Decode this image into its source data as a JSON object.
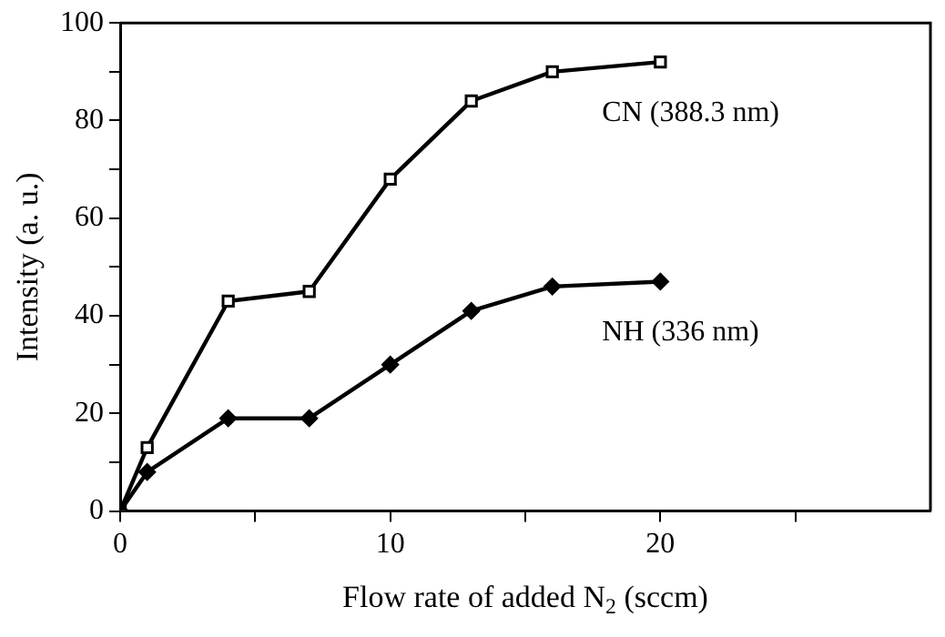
{
  "chart_data": {
    "type": "line",
    "xlabel": "Flow rate of added N$_{2}$ (sccm)",
    "ylabel": "Intensity (a. u.)",
    "x": [
      0,
      1,
      4,
      7,
      10,
      13,
      16,
      20
    ],
    "series": [
      {
        "name": "CN (388.3 nm)",
        "color": "#000000",
        "marker": "square",
        "values": [
          0,
          13,
          43,
          45,
          68,
          84,
          90,
          92
        ]
      },
      {
        "name": "NH (336 nm)",
        "color": "#000000",
        "marker": "diamond",
        "values": [
          0,
          8,
          19,
          19,
          30,
          41,
          46,
          47
        ]
      }
    ],
    "xlim": [
      0,
      30
    ],
    "xticks": [
      0,
      {
        "value": 5,
        "label": null
      },
      10,
      {
        "value": 15,
        "label": null
      },
      20,
      {
        "value": 25,
        "label": null
      }
    ],
    "ylim": [
      0,
      100
    ],
    "yticks": [
      0,
      {
        "value": 10,
        "label": null
      },
      20,
      {
        "value": 30,
        "label": null
      },
      40,
      {
        "value": 50,
        "label": null
      },
      60,
      {
        "value": 70,
        "label": null
      },
      80,
      {
        "value": 90,
        "label": null
      },
      100
    ],
    "grid": false,
    "legend": false,
    "line_style": "solid"
  }
}
